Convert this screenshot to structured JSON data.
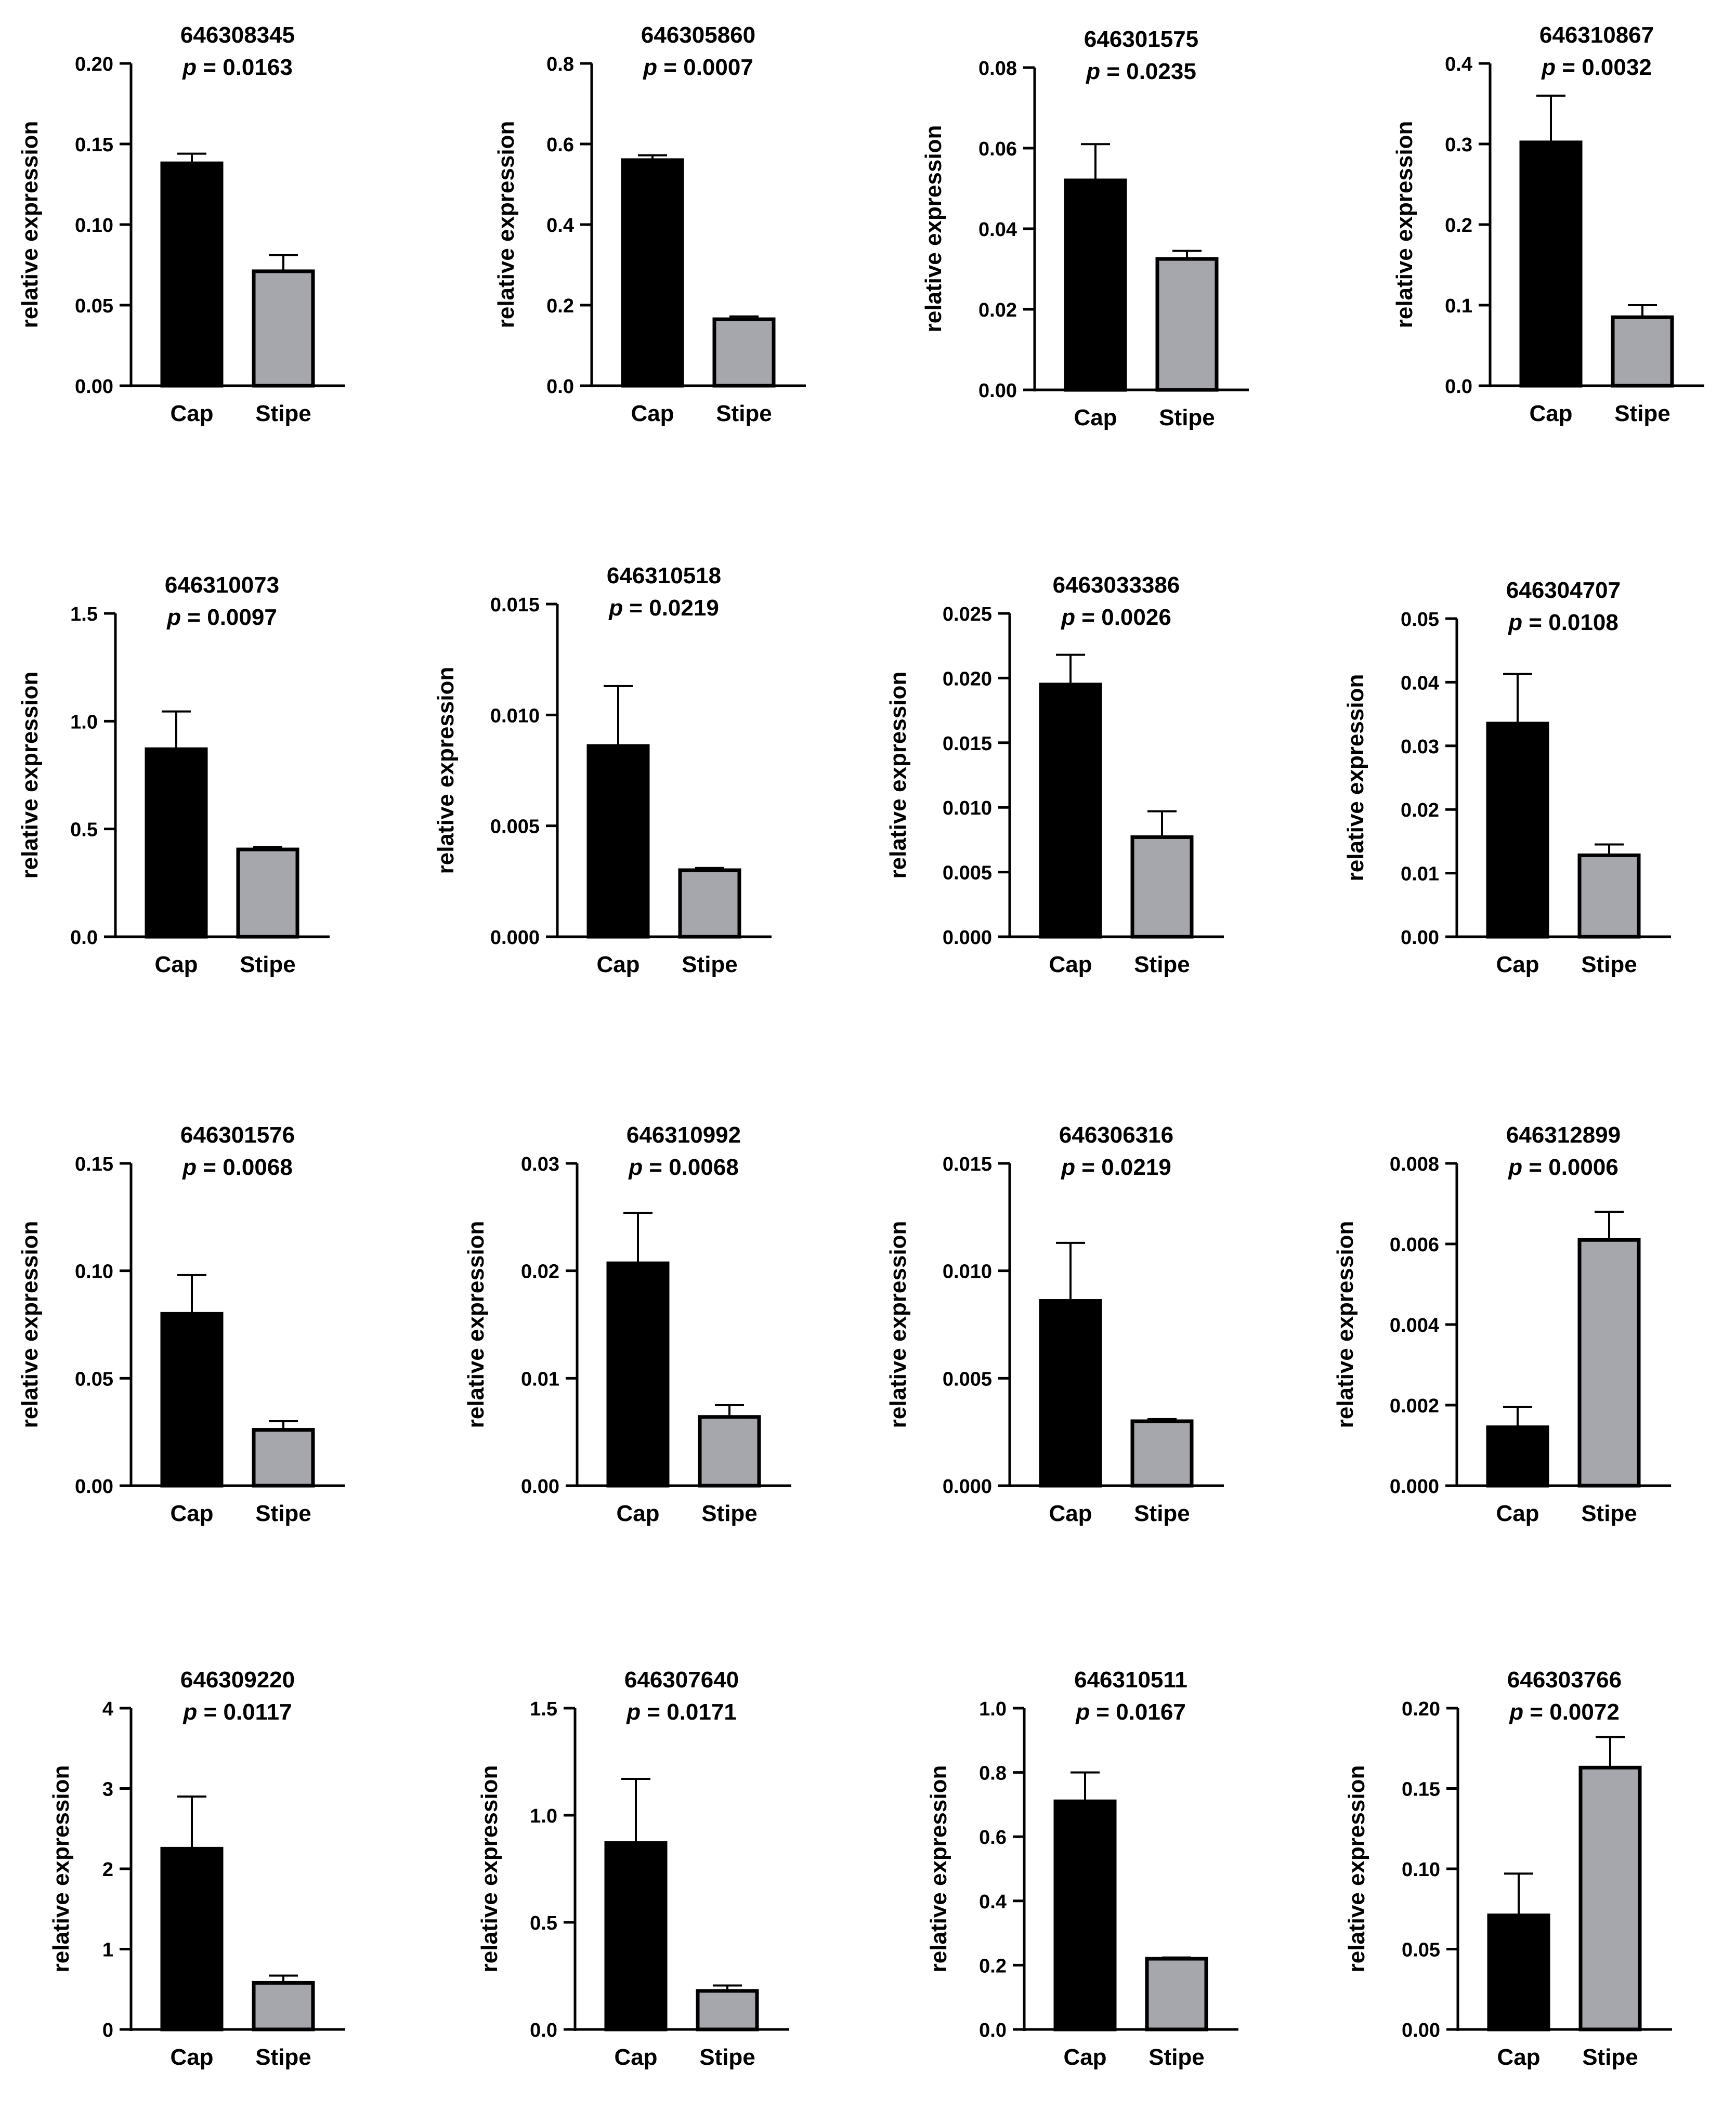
{
  "figure": {
    "colors": {
      "cap": "#000000",
      "stipe": "#a6a6ad",
      "axis": "#000000"
    },
    "p_prefix": "p",
    "p_equals": "= "
  },
  "chart_data": [
    {
      "type": "bar",
      "title": "646308345",
      "p_value": "0.0163",
      "categories": [
        "Cap",
        "Stipe"
      ],
      "values": [
        0.138,
        0.071
      ],
      "errors": [
        0.006,
        0.01
      ],
      "ylabel": "relative expression",
      "ylim": [
        0,
        0.2
      ],
      "yticks": [
        "0.00",
        "0.05",
        "0.10",
        "0.15",
        "0.20"
      ],
      "legend": "none",
      "grid": false
    },
    {
      "type": "bar",
      "title": "646305860",
      "p_value": "0.0007",
      "categories": [
        "Cap",
        "Stipe"
      ],
      "values": [
        0.56,
        0.165
      ],
      "errors": [
        0.012,
        0.007
      ],
      "ylabel": "relative expression",
      "ylim": [
        0,
        0.8
      ],
      "yticks": [
        "0.0",
        "0.2",
        "0.4",
        "0.6",
        "0.8"
      ],
      "legend": "none",
      "grid": false
    },
    {
      "type": "bar",
      "title": "646301575",
      "p_value": "0.0235",
      "categories": [
        "Cap",
        "Stipe"
      ],
      "values": [
        0.052,
        0.0325
      ],
      "errors": [
        0.009,
        0.002
      ],
      "ylabel": "relative expression",
      "ylim": [
        0,
        0.08
      ],
      "yticks": [
        "0.00",
        "0.02",
        "0.04",
        "0.06",
        "0.08"
      ],
      "legend": "none",
      "grid": false
    },
    {
      "type": "bar",
      "title": "646310867",
      "p_value": "0.0032",
      "categories": [
        "Cap",
        "Stipe"
      ],
      "values": [
        0.302,
        0.085
      ],
      "errors": [
        0.058,
        0.015
      ],
      "ylabel": "relative expression",
      "ylim": [
        0,
        0.4
      ],
      "yticks": [
        "0.0",
        "0.1",
        "0.2",
        "0.3",
        "0.4"
      ],
      "legend": "none",
      "grid": false
    },
    {
      "type": "bar",
      "title": "646310073",
      "p_value": "0.0097",
      "categories": [
        "Cap",
        "Stipe"
      ],
      "values": [
        0.87,
        0.405
      ],
      "errors": [
        0.175,
        0.012
      ],
      "ylabel": "relative expression",
      "ylim": [
        0,
        1.5
      ],
      "yticks": [
        "0.0",
        "0.5",
        "1.0",
        "1.5"
      ],
      "legend": "none",
      "grid": false
    },
    {
      "type": "bar",
      "title": "646310518",
      "p_value": "0.0219",
      "categories": [
        "Cap",
        "Stipe"
      ],
      "values": [
        0.0086,
        0.003
      ],
      "errors": [
        0.0027,
        0.0001
      ],
      "ylabel": "relative expression",
      "ylim": [
        0,
        0.015
      ],
      "yticks": [
        "0.000",
        "0.005",
        "0.010",
        "0.015"
      ],
      "legend": "none",
      "grid": false
    },
    {
      "type": "bar",
      "title": "6463033386",
      "p_value": "0.0026",
      "categories": [
        "Cap",
        "Stipe"
      ],
      "values": [
        0.0195,
        0.0077
      ],
      "errors": [
        0.0023,
        0.002
      ],
      "ylabel": "relative expression",
      "ylim": [
        0,
        0.025
      ],
      "yticks": [
        "0.000",
        "0.005",
        "0.010",
        "0.015",
        "0.020",
        "0.025"
      ],
      "legend": "none",
      "grid": false
    },
    {
      "type": "bar",
      "title": "646304707",
      "p_value": "0.0108",
      "categories": [
        "Cap",
        "Stipe"
      ],
      "values": [
        0.0335,
        0.0128
      ],
      "errors": [
        0.0078,
        0.0017
      ],
      "ylabel": "relative expression",
      "ylim": [
        0,
        0.05
      ],
      "yticks": [
        "0.00",
        "0.01",
        "0.02",
        "0.03",
        "0.04",
        "0.05"
      ],
      "legend": "none",
      "grid": false
    },
    {
      "type": "bar",
      "title": "646301576",
      "p_value": "0.0068",
      "categories": [
        "Cap",
        "Stipe"
      ],
      "values": [
        0.08,
        0.026
      ],
      "errors": [
        0.018,
        0.004
      ],
      "ylabel": "relative expression",
      "ylim": [
        0,
        0.15
      ],
      "yticks": [
        "0.00",
        "0.05",
        "0.10",
        "0.15"
      ],
      "legend": "none",
      "grid": false
    },
    {
      "type": "bar",
      "title": "646310992",
      "p_value": "0.0068",
      "categories": [
        "Cap",
        "Stipe"
      ],
      "values": [
        0.0207,
        0.0064
      ],
      "errors": [
        0.0047,
        0.0011
      ],
      "ylabel": "relative expression",
      "ylim": [
        0,
        0.03
      ],
      "yticks": [
        "0.00",
        "0.01",
        "0.02",
        "0.03"
      ],
      "legend": "none",
      "grid": false
    },
    {
      "type": "bar",
      "title": "646306316",
      "p_value": "0.0219",
      "categories": [
        "Cap",
        "Stipe"
      ],
      "values": [
        0.0086,
        0.003
      ],
      "errors": [
        0.0027,
        0.0001
      ],
      "ylabel": "relative expression",
      "ylim": [
        0,
        0.015
      ],
      "yticks": [
        "0.000",
        "0.005",
        "0.010",
        "0.015"
      ],
      "legend": "none",
      "grid": false
    },
    {
      "type": "bar",
      "title": "646312899",
      "p_value": "0.0006",
      "categories": [
        "Cap",
        "Stipe"
      ],
      "values": [
        0.00145,
        0.0061
      ],
      "errors": [
        0.0005,
        0.0007
      ],
      "ylabel": "relative expression",
      "ylim": [
        0,
        0.008
      ],
      "yticks": [
        "0.000",
        "0.002",
        "0.004",
        "0.006",
        "0.008"
      ],
      "legend": "none",
      "grid": false
    },
    {
      "type": "bar",
      "title": "646309220",
      "p_value": "0.0117",
      "categories": [
        "Cap",
        "Stipe"
      ],
      "values": [
        2.25,
        0.58
      ],
      "errors": [
        0.65,
        0.09
      ],
      "ylabel": "relative expression",
      "ylim": [
        0,
        4
      ],
      "yticks": [
        "0",
        "1",
        "2",
        "3",
        "4"
      ],
      "legend": "none",
      "grid": false
    },
    {
      "type": "bar",
      "title": "646307640",
      "p_value": "0.0171",
      "categories": [
        "Cap",
        "Stipe"
      ],
      "values": [
        0.87,
        0.18
      ],
      "errors": [
        0.3,
        0.025
      ],
      "ylabel": "relative expression",
      "ylim": [
        0,
        1.5
      ],
      "yticks": [
        "0.0",
        "0.5",
        "1.0",
        "1.5"
      ],
      "legend": "none",
      "grid": false
    },
    {
      "type": "bar",
      "title": "646310511",
      "p_value": "0.0167",
      "categories": [
        "Cap",
        "Stipe"
      ],
      "values": [
        0.71,
        0.22
      ],
      "errors": [
        0.09,
        0.004
      ],
      "ylabel": "relative expression",
      "ylim": [
        0,
        1.0
      ],
      "yticks": [
        "0.0",
        "0.2",
        "0.4",
        "0.6",
        "0.8",
        "1.0"
      ],
      "legend": "none",
      "grid": false
    },
    {
      "type": "bar",
      "title": "646303766",
      "p_value": "0.0072",
      "categories": [
        "Cap",
        "Stipe"
      ],
      "values": [
        0.071,
        0.163
      ],
      "errors": [
        0.026,
        0.019
      ],
      "ylabel": "relative expression",
      "ylim": [
        0,
        0.2
      ],
      "yticks": [
        "0.00",
        "0.05",
        "0.10",
        "0.15",
        "0.20"
      ],
      "legend": "none",
      "grid": false
    }
  ]
}
